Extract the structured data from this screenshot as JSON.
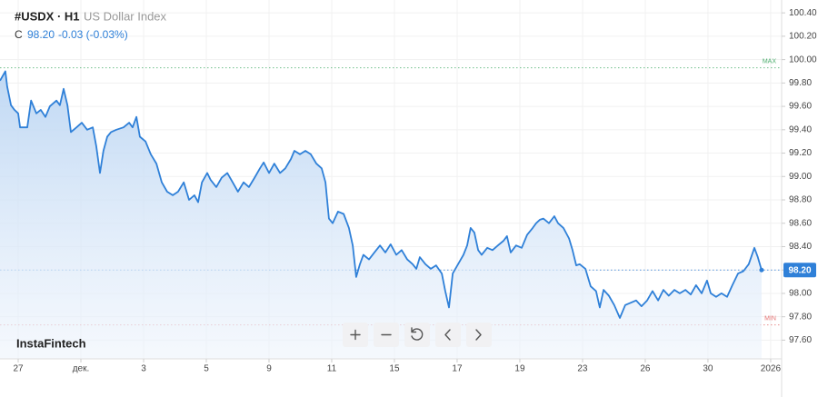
{
  "chart_data": {
    "type": "area",
    "header": {
      "symbol": "#USDX · H1",
      "name": "US Dollar Index",
      "close_label": "C",
      "close": "98.20",
      "change": "-0.03 (-0.03%)"
    },
    "watermark": "InstaFintech",
    "x": [
      -0.58,
      -0.41,
      -0.35,
      -0.23,
      -0.12,
      0,
      0.06,
      0.29,
      0.41,
      0.58,
      0.72,
      0.87,
      1.01,
      1.22,
      1.33,
      1.45,
      1.57,
      1.68,
      1.86,
      2.03,
      2.2,
      2.38,
      2.49,
      2.61,
      2.72,
      2.84,
      2.96,
      3.13,
      3.36,
      3.54,
      3.65,
      3.77,
      3.88,
      4.06,
      4.23,
      4.41,
      4.58,
      4.75,
      4.93,
      5.1,
      5.28,
      5.45,
      5.62,
      5.74,
      5.86,
      6.03,
      6.14,
      6.32,
      6.49,
      6.67,
      6.84,
      7.01,
      7.19,
      7.36,
      7.54,
      7.71,
      7.83,
      8.0,
      8.17,
      8.35,
      8.52,
      8.7,
      8.81,
      8.99,
      9.16,
      9.33,
      9.51,
      9.68,
      9.8,
      9.91,
      10.03,
      10.2,
      10.38,
      10.55,
      10.67,
      10.78,
      10.9,
      11.01,
      11.19,
      11.36,
      11.54,
      11.71,
      11.88,
      12.06,
      12.23,
      12.41,
      12.58,
      12.7,
      12.81,
      12.99,
      13.16,
      13.33,
      13.51,
      13.62,
      13.74,
      13.86,
      14.03,
      14.2,
      14.32,
      14.43,
      14.55,
      14.67,
      14.78,
      14.96,
      15.13,
      15.3,
      15.48,
      15.59,
      15.71,
      15.88,
      16.06,
      16.23,
      16.41,
      16.52,
      16.64,
      16.75,
      16.93,
      17.1,
      17.22,
      17.39,
      17.57,
      17.68,
      17.8,
      17.91,
      18.09,
      18.26,
      18.43,
      18.55,
      18.67,
      18.84,
      19.01,
      19.19,
      19.36,
      19.54,
      19.71,
      19.88,
      20.06,
      20.23,
      20.41,
      20.58,
      20.75,
      20.93,
      21.1,
      21.28,
      21.45,
      21.62,
      21.8,
      21.97,
      22.09,
      22.26,
      22.43,
      22.61,
      22.78,
      22.96,
      23.13,
      23.3,
      23.48,
      23.59,
      23.71
    ],
    "series": [
      {
        "color": "#2f80d8",
        "values": [
          99.82,
          99.9,
          99.77,
          99.61,
          99.57,
          99.54,
          99.42,
          99.42,
          99.65,
          99.54,
          99.57,
          99.51,
          99.6,
          99.65,
          99.61,
          99.75,
          99.61,
          99.38,
          99.42,
          99.46,
          99.4,
          99.42,
          99.26,
          99.03,
          99.22,
          99.34,
          99.38,
          99.4,
          99.42,
          99.46,
          99.42,
          99.51,
          99.34,
          99.3,
          99.19,
          99.11,
          98.95,
          98.87,
          98.84,
          98.87,
          98.95,
          98.8,
          98.84,
          98.78,
          98.95,
          99.03,
          98.97,
          98.91,
          98.99,
          99.03,
          98.95,
          98.87,
          98.95,
          98.91,
          98.99,
          99.07,
          99.12,
          99.03,
          99.11,
          99.03,
          99.07,
          99.15,
          99.22,
          99.19,
          99.22,
          99.19,
          99.11,
          99.07,
          98.95,
          98.64,
          98.6,
          98.7,
          98.68,
          98.56,
          98.41,
          98.14,
          98.25,
          98.33,
          98.29,
          98.35,
          98.41,
          98.35,
          98.42,
          98.33,
          98.37,
          98.29,
          98.25,
          98.21,
          98.31,
          98.25,
          98.21,
          98.24,
          98.17,
          98.02,
          97.88,
          98.17,
          98.25,
          98.33,
          98.41,
          98.56,
          98.52,
          98.37,
          98.33,
          98.39,
          98.37,
          98.41,
          98.45,
          98.49,
          98.35,
          98.41,
          98.39,
          98.5,
          98.56,
          98.6,
          98.63,
          98.64,
          98.6,
          98.66,
          98.6,
          98.56,
          98.47,
          98.37,
          98.24,
          98.25,
          98.21,
          98.06,
          98.02,
          97.88,
          98.03,
          97.98,
          97.9,
          97.79,
          97.9,
          97.92,
          97.94,
          97.89,
          97.94,
          98.02,
          97.94,
          98.03,
          97.98,
          98.03,
          98.0,
          98.03,
          97.99,
          98.07,
          98.0,
          98.11,
          98.0,
          97.97,
          98.0,
          97.97,
          98.07,
          98.17,
          98.19,
          98.25,
          98.39,
          98.31,
          98.2
        ]
      }
    ],
    "xlim": [
      -0.58,
      24.35
    ],
    "ylim": [
      97.44,
      100.51
    ],
    "xticks": [
      {
        "value": 0,
        "label": "27"
      },
      {
        "value": 2,
        "label": "дек."
      },
      {
        "value": 4,
        "label": "3"
      },
      {
        "value": 6,
        "label": "5"
      },
      {
        "value": 8,
        "label": "9"
      },
      {
        "value": 10,
        "label": "11"
      },
      {
        "value": 12,
        "label": "15"
      },
      {
        "value": 14,
        "label": "17"
      },
      {
        "value": 16,
        "label": "19"
      },
      {
        "value": 18,
        "label": "23"
      },
      {
        "value": 20,
        "label": "26"
      },
      {
        "value": 22,
        "label": "30"
      },
      {
        "value": 24,
        "label": "2026"
      }
    ],
    "yticks": [
      {
        "value": 97.6,
        "label": "97.60"
      },
      {
        "value": 97.8,
        "label": "97.80"
      },
      {
        "value": 98,
        "label": "98.00"
      },
      {
        "value": 98.2,
        "label": "98.20"
      },
      {
        "value": 98.4,
        "label": "98.40"
      },
      {
        "value": 98.6,
        "label": "98.60"
      },
      {
        "value": 98.8,
        "label": "98.80"
      },
      {
        "value": 99,
        "label": "99.00"
      },
      {
        "value": 99.2,
        "label": "99.20"
      },
      {
        "value": 99.4,
        "label": "99.40"
      },
      {
        "value": 99.6,
        "label": "99.60"
      },
      {
        "value": 99.8,
        "label": "99.80"
      },
      {
        "value": 100,
        "label": "100.00"
      },
      {
        "value": 100.2,
        "label": "100.20"
      },
      {
        "value": 100.4,
        "label": "100.40"
      }
    ],
    "grid": true,
    "max_line": {
      "value": 99.93,
      "label": "MAX",
      "color": "#4caf6e"
    },
    "min_line": {
      "value": 97.73,
      "label": "MIN",
      "color": "#e57373"
    },
    "price_line": {
      "value": 98.2,
      "label": "98.20",
      "color": "#2f80d8"
    }
  }
}
